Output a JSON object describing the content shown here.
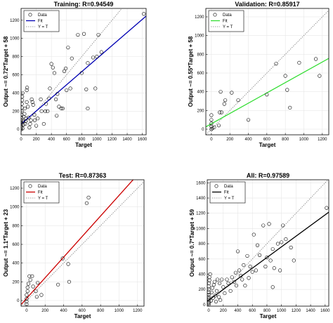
{
  "colors": {
    "background": "#ffffff",
    "axes": "#000000",
    "grid": "#e6e6e6",
    "data_marker": "#000000",
    "identity_line": "#808080",
    "training_fit": "#0000b3",
    "validation_fit": "#33dd33",
    "test_fit": "#cc0000",
    "all_fit": "#000000"
  },
  "chart_data": [
    {
      "type": "scatter",
      "title": "Training: R=0.94549",
      "xlabel": "Target",
      "ylabel": "Output ~= 0.72*Target + 58",
      "xlim": [
        0,
        1650
      ],
      "ylim": [
        -60,
        1330
      ],
      "xticks": [
        0,
        200,
        400,
        600,
        800,
        1000,
        1200,
        1400,
        1600
      ],
      "yticks": [
        0,
        200,
        400,
        600,
        800,
        1000,
        1200
      ],
      "grid": true,
      "legend": {
        "placement": "top-left",
        "entries": [
          "Data",
          "Fit",
          "Y = T"
        ]
      },
      "fit": {
        "slope": 0.72,
        "intercept": 58,
        "color": "#0000b3"
      },
      "points": [
        [
          0,
          0
        ],
        [
          0,
          20
        ],
        [
          0,
          40
        ],
        [
          0,
          60
        ],
        [
          0,
          80
        ],
        [
          5,
          100
        ],
        [
          5,
          130
        ],
        [
          5,
          160
        ],
        [
          10,
          200
        ],
        [
          10,
          240
        ],
        [
          10,
          280
        ],
        [
          15,
          320
        ],
        [
          15,
          360
        ],
        [
          20,
          400
        ],
        [
          20,
          10
        ],
        [
          30,
          50
        ],
        [
          30,
          90
        ],
        [
          35,
          140
        ],
        [
          45,
          170
        ],
        [
          50,
          230
        ],
        [
          55,
          60
        ],
        [
          60,
          90
        ],
        [
          65,
          120
        ],
        [
          75,
          300
        ],
        [
          75,
          430
        ],
        [
          80,
          460
        ],
        [
          90,
          250
        ],
        [
          100,
          130
        ],
        [
          110,
          20
        ],
        [
          120,
          60
        ],
        [
          130,
          100
        ],
        [
          140,
          330
        ],
        [
          150,
          300
        ],
        [
          160,
          270
        ],
        [
          175,
          160
        ],
        [
          180,
          100
        ],
        [
          200,
          40
        ],
        [
          220,
          120
        ],
        [
          260,
          330
        ],
        [
          270,
          200
        ],
        [
          300,
          60
        ],
        [
          320,
          200
        ],
        [
          330,
          280
        ],
        [
          350,
          200
        ],
        [
          370,
          340
        ],
        [
          380,
          450
        ],
        [
          400,
          720
        ],
        [
          420,
          680
        ],
        [
          440,
          620
        ],
        [
          460,
          330
        ],
        [
          470,
          150
        ],
        [
          480,
          390
        ],
        [
          500,
          250
        ],
        [
          530,
          230
        ],
        [
          550,
          230
        ],
        [
          570,
          640
        ],
        [
          590,
          670
        ],
        [
          600,
          430
        ],
        [
          620,
          900
        ],
        [
          650,
          450
        ],
        [
          670,
          780
        ],
        [
          750,
          1040
        ],
        [
          800,
          620
        ],
        [
          830,
          1050
        ],
        [
          860,
          440
        ],
        [
          880,
          230
        ],
        [
          880,
          730
        ],
        [
          950,
          790
        ],
        [
          980,
          450
        ],
        [
          1000,
          800
        ],
        [
          1020,
          1040
        ],
        [
          1060,
          850
        ],
        [
          1620,
          1270
        ]
      ]
    },
    {
      "type": "scatter",
      "title": "Validation: R=0.85917",
      "xlabel": "Target",
      "ylabel": "Output ~= 0.55*Target + 58",
      "xlim": [
        -60,
        1270
      ],
      "ylim": [
        -60,
        1290
      ],
      "xticks": [
        0,
        200,
        400,
        600,
        800,
        1000,
        1200
      ],
      "yticks": [
        0,
        200,
        400,
        600,
        800,
        1000,
        1200
      ],
      "grid": true,
      "legend": {
        "placement": "top-left",
        "entries": [
          "Data",
          "Fit",
          "Y = T"
        ]
      },
      "fit": {
        "slope": 0.55,
        "intercept": 58,
        "color": "#33dd33"
      },
      "points": [
        [
          0,
          0
        ],
        [
          0,
          30
        ],
        [
          0,
          60
        ],
        [
          0,
          100
        ],
        [
          0,
          150
        ],
        [
          10,
          10
        ],
        [
          30,
          20
        ],
        [
          80,
          40
        ],
        [
          90,
          180
        ],
        [
          100,
          400
        ],
        [
          110,
          180
        ],
        [
          140,
          270
        ],
        [
          150,
          310
        ],
        [
          220,
          390
        ],
        [
          290,
          310
        ],
        [
          400,
          100
        ],
        [
          600,
          370
        ],
        [
          700,
          700
        ],
        [
          800,
          570
        ],
        [
          820,
          420
        ],
        [
          850,
          230
        ],
        [
          950,
          710
        ],
        [
          1130,
          750
        ],
        [
          1170,
          570
        ]
      ]
    },
    {
      "type": "scatter",
      "title": "Test: R=0.87363",
      "xlabel": "Target",
      "ylabel": "Output ~= 1.1*Target + 23",
      "xlim": [
        -60,
        1270
      ],
      "ylim": [
        -60,
        1290
      ],
      "xticks": [
        0,
        200,
        400,
        600,
        800,
        1000,
        1200
      ],
      "yticks": [
        0,
        200,
        400,
        600,
        800,
        1000,
        1200
      ],
      "grid": true,
      "legend": {
        "placement": "top-left",
        "entries": [
          "Data",
          "Fit",
          "Y = T"
        ]
      },
      "fit": {
        "slope": 1.1,
        "intercept": 23,
        "color": "#cc0000"
      },
      "points": [
        [
          0,
          -40
        ],
        [
          0,
          -10
        ],
        [
          0,
          20
        ],
        [
          0,
          60
        ],
        [
          10,
          100
        ],
        [
          10,
          140
        ],
        [
          20,
          180
        ],
        [
          30,
          260
        ],
        [
          40,
          220
        ],
        [
          60,
          260
        ],
        [
          70,
          150
        ],
        [
          100,
          100
        ],
        [
          110,
          40
        ],
        [
          120,
          190
        ],
        [
          160,
          60
        ],
        [
          340,
          170
        ],
        [
          390,
          450
        ],
        [
          450,
          390
        ],
        [
          460,
          200
        ],
        [
          650,
          1040
        ],
        [
          670,
          1100
        ]
      ]
    },
    {
      "type": "scatter",
      "title": "All: R=0.97589",
      "xlabel": "Target",
      "ylabel": "Output ~= 0.7*Target + 59",
      "xlim": [
        -20,
        1650
      ],
      "ylim": [
        -20,
        1640
      ],
      "xticks": [
        0,
        200,
        400,
        600,
        800,
        1000,
        1200,
        1400,
        1600
      ],
      "yticks": [
        0,
        200,
        400,
        600,
        800,
        1000,
        1200,
        1400,
        1600
      ],
      "grid": true,
      "legend": {
        "placement": "top-left",
        "entries": [
          "Data",
          "Fit",
          "Y = T"
        ]
      },
      "fit": {
        "slope": 0.7,
        "intercept": 59,
        "color": "#000000"
      },
      "points": [
        [
          0,
          0
        ],
        [
          0,
          20
        ],
        [
          0,
          40
        ],
        [
          0,
          60
        ],
        [
          0,
          80
        ],
        [
          0,
          100
        ],
        [
          0,
          130
        ],
        [
          0,
          160
        ],
        [
          0,
          200
        ],
        [
          0,
          240
        ],
        [
          5,
          280
        ],
        [
          10,
          320
        ],
        [
          10,
          360
        ],
        [
          20,
          400
        ],
        [
          30,
          50
        ],
        [
          40,
          160
        ],
        [
          50,
          220
        ],
        [
          60,
          90
        ],
        [
          70,
          260
        ],
        [
          80,
          300
        ],
        [
          90,
          120
        ],
        [
          100,
          40
        ],
        [
          110,
          180
        ],
        [
          120,
          330
        ],
        [
          140,
          100
        ],
        [
          150,
          280
        ],
        [
          160,
          60
        ],
        [
          180,
          330
        ],
        [
          200,
          230
        ],
        [
          220,
          150
        ],
        [
          250,
          330
        ],
        [
          270,
          280
        ],
        [
          300,
          180
        ],
        [
          320,
          360
        ],
        [
          350,
          300
        ],
        [
          370,
          420
        ],
        [
          380,
          250
        ],
        [
          400,
          700
        ],
        [
          420,
          450
        ],
        [
          440,
          380
        ],
        [
          460,
          330
        ],
        [
          480,
          520
        ],
        [
          500,
          250
        ],
        [
          530,
          640
        ],
        [
          550,
          350
        ],
        [
          570,
          500
        ],
        [
          600,
          430
        ],
        [
          620,
          920
        ],
        [
          650,
          450
        ],
        [
          670,
          780
        ],
        [
          700,
          650
        ],
        [
          750,
          1040
        ],
        [
          780,
          500
        ],
        [
          800,
          620
        ],
        [
          830,
          1060
        ],
        [
          850,
          580
        ],
        [
          880,
          230
        ],
        [
          880,
          730
        ],
        [
          900,
          480
        ],
        [
          950,
          800
        ],
        [
          980,
          450
        ],
        [
          1000,
          820
        ],
        [
          1020,
          1040
        ],
        [
          1060,
          860
        ],
        [
          1130,
          750
        ],
        [
          1170,
          580
        ],
        [
          1620,
          1270
        ]
      ]
    }
  ]
}
